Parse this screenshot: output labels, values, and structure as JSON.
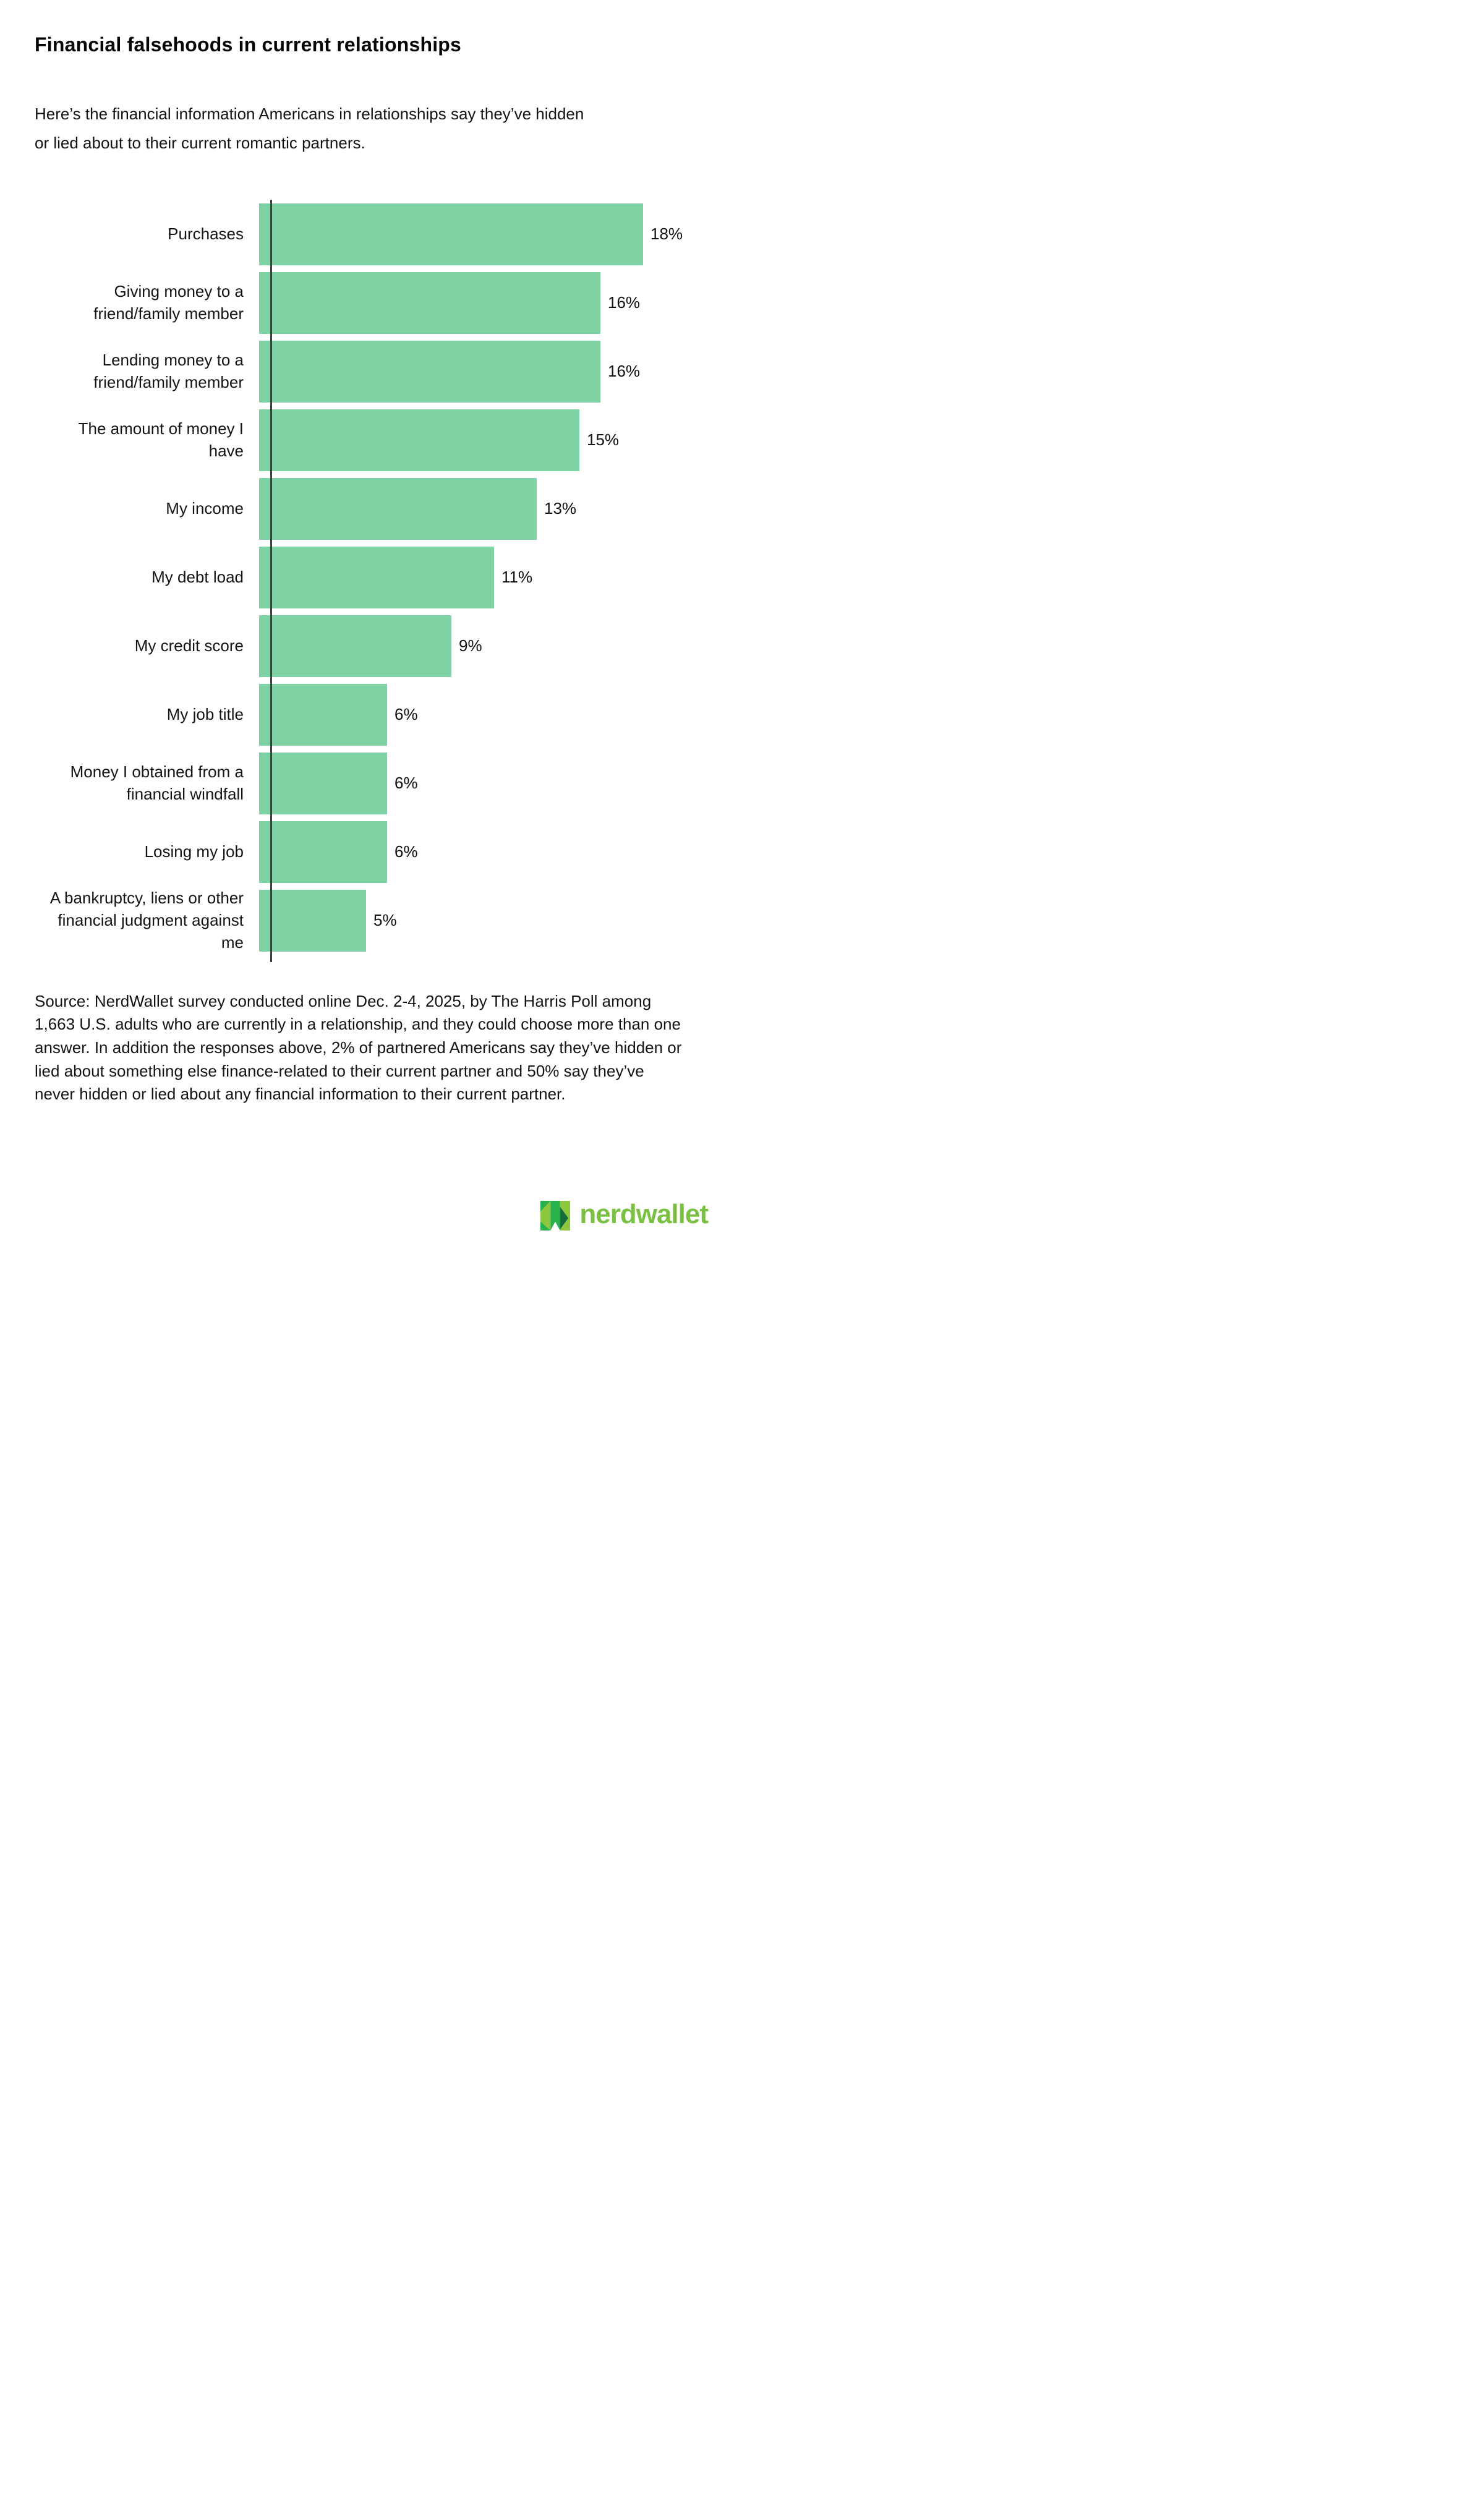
{
  "title": "Financial falsehoods in current relationships",
  "subtitle": "Here’s the financial information Americans in relationships say they’ve hidden or lied about to their current romantic partners.",
  "chart_data": {
    "type": "bar",
    "orientation": "horizontal",
    "title": "Financial falsehoods in current relationships",
    "categories": [
      "Purchases",
      "Giving money to a friend/family member",
      "Lending money to a friend/family member",
      "The amount of money I have",
      "My income",
      "My debt load",
      "My credit score",
      "My job title",
      "Money I obtained from a financial windfall",
      "Losing my job",
      "A bankruptcy, liens or other financial judgment against me"
    ],
    "display_labels": [
      "Purchases",
      "Giving money to a\nfriend/family member",
      "Lending money to a\nfriend/family member",
      "The amount of money I\nhave",
      "My income",
      "My debt load",
      "My credit score",
      "My job title",
      "Money I obtained from a\nfinancial windfall",
      "Losing my job",
      "A bankruptcy, liens or other\nfinancial judgment against\nme"
    ],
    "values": [
      18,
      16,
      16,
      15,
      13,
      11,
      9,
      6,
      6,
      6,
      5
    ],
    "value_labels": [
      "18%",
      "16%",
      "16%",
      "15%",
      "13%",
      "11%",
      "9%",
      "6%",
      "6%",
      "6%",
      "5%"
    ],
    "xlim": [
      0,
      18
    ],
    "unit": "percent",
    "bar_color": "#7dd1a3",
    "axis_color": "#3f3f3f",
    "grid": false,
    "legend": false
  },
  "source_note": "Source: NerdWallet survey conducted online Dec. 2-4, 2025, by The Harris Poll among 1,663 U.S. adults who are currently in a relationship, and they could choose more than one answer. In addition the responses above, 2% of partnered Americans say they’ve hidden or lied about something else finance-related to their current partner and 50% say they’ve never hidden or lied about any financial information to their current partner.",
  "logo": {
    "wordmark": "nerdwallet",
    "icon_name": "nerdwallet-n-icon",
    "wordmark_color": "#7ac143",
    "icon_color_light": "#8dc63f",
    "icon_color_mid": "#29b24b",
    "icon_color_dark": "#156b39"
  }
}
